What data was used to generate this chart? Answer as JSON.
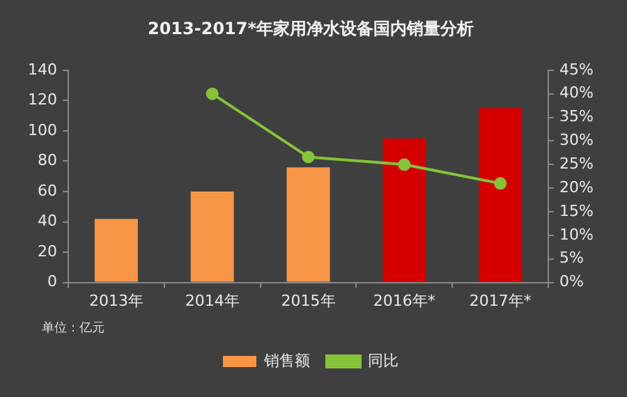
{
  "chart_data": {
    "type": "bar",
    "title": "2013-2017*年家用净水设备国内销量分析",
    "categories": [
      "2013年",
      "2014年",
      "2015年",
      "2016年*",
      "2017年*"
    ],
    "series": [
      {
        "name": "销售额",
        "colors": [
          "#f79646",
          "#f79646",
          "#f79646",
          "#d40000",
          "#d40000"
        ],
        "values": [
          42,
          60,
          76,
          95,
          115
        ]
      },
      {
        "name": "同比",
        "type": "line",
        "axis": "y2",
        "color": "#86c33a",
        "values": [
          null,
          40,
          26.6,
          25,
          21
        ]
      }
    ],
    "ylim": [
      0,
      140
    ],
    "yticks": [
      0,
      20,
      40,
      60,
      80,
      100,
      120,
      140
    ],
    "y2lim": [
      0,
      45
    ],
    "y2ticks": [
      {
        "value": 0,
        "label": "0%"
      },
      {
        "value": 5,
        "label": "5%"
      },
      {
        "value": 10,
        "label": "10%"
      },
      {
        "value": 15,
        "label": "15%"
      },
      {
        "value": 20,
        "label": "20%"
      },
      {
        "value": 25,
        "label": "25%"
      },
      {
        "value": 30,
        "label": "30%"
      },
      {
        "value": 35,
        "label": "35%"
      },
      {
        "value": 40,
        "label": "40%"
      },
      {
        "value": 45,
        "label": "45%"
      }
    ],
    "annotations": [
      "单位：亿元"
    ],
    "grid": false,
    "legend": "bottom",
    "marker": "circle",
    "line_style": "solid"
  }
}
